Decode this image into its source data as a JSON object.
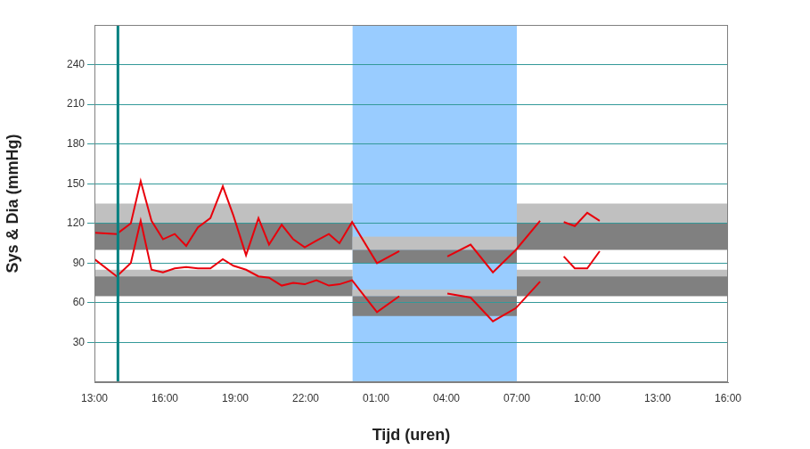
{
  "chart_data": {
    "type": "line",
    "x_label": "Tijd (uren)",
    "y_label": "Sys & Dia (mmHg)",
    "x": [
      13,
      13.95,
      14.55,
      14.97,
      15.43,
      15.92,
      16.42,
      16.91,
      17.41,
      17.94,
      18.47,
      18.92,
      19.46,
      19.99,
      20.44,
      20.98,
      21.47,
      21.96,
      22.46,
      22.99,
      23.44,
      23.98,
      25.04,
      25.99,
      27,
      28.04,
      29.03,
      29.98,
      30.96,
      31.99,
      32.5,
      33.0,
      33.47,
      34.0,
      34.53
    ],
    "series": [
      {
        "color": "#e8000b",
        "values": [
          113,
          112,
          120,
          152,
          122,
          108,
          112,
          103,
          117,
          124,
          148,
          126,
          96,
          124,
          104,
          119,
          108,
          102,
          107,
          112,
          105,
          121,
          90,
          99,
          null,
          95,
          104,
          83,
          100,
          122,
          null,
          121,
          118,
          128,
          122
        ]
      },
      {
        "color": "#e8000b",
        "values": [
          93,
          80,
          90,
          122,
          85,
          83,
          86,
          87,
          86,
          86,
          93,
          88,
          85,
          80,
          79,
          73,
          75,
          74,
          77,
          73,
          74,
          77,
          53,
          65,
          null,
          67,
          64,
          46,
          56,
          76,
          null,
          95,
          86,
          86,
          99
        ]
      }
    ],
    "xlim": [
      13,
      40
    ],
    "xticks": [
      {
        "value": 13,
        "label": "13:00"
      },
      {
        "value": 16,
        "label": "16:00"
      },
      {
        "value": 19,
        "label": "19:00"
      },
      {
        "value": 22,
        "label": "22:00"
      },
      {
        "value": 25,
        "label": "01:00"
      },
      {
        "value": 28,
        "label": "04:00"
      },
      {
        "value": 31,
        "label": "07:00"
      },
      {
        "value": 34,
        "label": "10:00"
      },
      {
        "value": 37,
        "label": "13:00"
      },
      {
        "value": 40,
        "label": "16:00"
      }
    ],
    "ylim": [
      0,
      270
    ],
    "yticks": [
      30,
      60,
      90,
      120,
      150,
      180,
      210,
      240
    ],
    "grid": true,
    "night": {
      "x": [
        24,
        31
      ],
      "color": "#99ccff"
    },
    "reference_bands": [
      {
        "x": [
          13,
          24
        ],
        "y": [
          120,
          135
        ],
        "color": "#c0c0c0"
      },
      {
        "x": [
          13,
          24
        ],
        "y": [
          100,
          120
        ],
        "color": "#808080"
      },
      {
        "x": [
          13,
          24
        ],
        "y": [
          80,
          85
        ],
        "color": "#c0c0c0"
      },
      {
        "x": [
          13,
          24
        ],
        "y": [
          65,
          80
        ],
        "color": "#808080"
      },
      {
        "x": [
          24,
          31
        ],
        "y": [
          100,
          110
        ],
        "color": "#c0c0c0"
      },
      {
        "x": [
          24,
          31
        ],
        "y": [
          90,
          100
        ],
        "color": "#808080"
      },
      {
        "x": [
          24,
          31
        ],
        "y": [
          65,
          70
        ],
        "color": "#c0c0c0"
      },
      {
        "x": [
          24,
          31
        ],
        "y": [
          50,
          65
        ],
        "color": "#808080"
      },
      {
        "x": [
          31,
          40
        ],
        "y": [
          120,
          135
        ],
        "color": "#c0c0c0"
      },
      {
        "x": [
          31,
          40
        ],
        "y": [
          100,
          120
        ],
        "color": "#808080"
      },
      {
        "x": [
          31,
          40
        ],
        "y": [
          80,
          85
        ],
        "color": "#c0c0c0"
      },
      {
        "x": [
          31,
          40
        ],
        "y": [
          65,
          80
        ],
        "color": "#808080"
      }
    ],
    "start_marker": {
      "x": 14,
      "color": "#008080"
    }
  }
}
